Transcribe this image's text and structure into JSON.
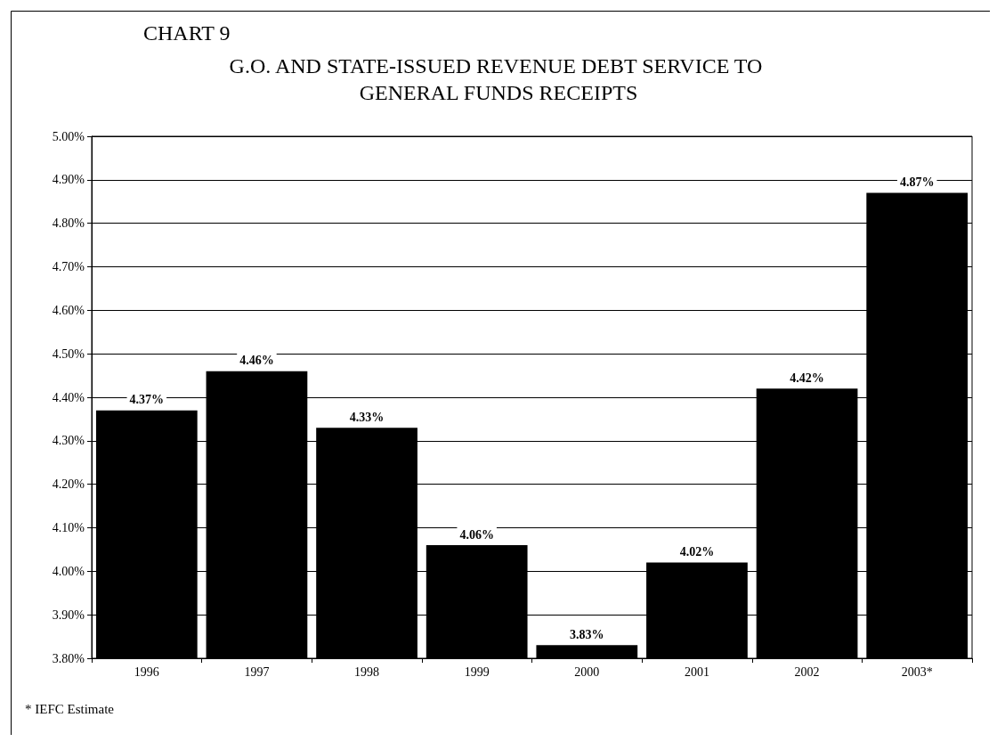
{
  "chart_data": {
    "type": "bar",
    "subtitle": "CHART 9",
    "title": "G.O. AND STATE-ISSUED REVENUE DEBT SERVICE TO GENERAL FUNDS RECEIPTS",
    "categories": [
      "1996",
      "1997",
      "1998",
      "1999",
      "2000",
      "2001",
      "2002",
      "2003*"
    ],
    "values": [
      4.37,
      4.46,
      4.33,
      4.06,
      3.83,
      4.02,
      4.42,
      4.87
    ],
    "value_labels": [
      "4.37%",
      "4.46%",
      "4.33%",
      "4.06%",
      "3.83%",
      "4.02%",
      "4.42%",
      "4.87%"
    ],
    "color": "#000000",
    "ylim": [
      3.8,
      5.0
    ],
    "yticks": [
      {
        "value": 3.8,
        "label": "3.80%"
      },
      {
        "value": 3.9,
        "label": "3.90%"
      },
      {
        "value": 4.0,
        "label": "4.00%"
      },
      {
        "value": 4.1,
        "label": "4.10%"
      },
      {
        "value": 4.2,
        "label": "4.20%"
      },
      {
        "value": 4.3,
        "label": "4.30%"
      },
      {
        "value": 4.4,
        "label": "4.40%"
      },
      {
        "value": 4.5,
        "label": "4.50%"
      },
      {
        "value": 4.6,
        "label": "4.60%"
      },
      {
        "value": 4.7,
        "label": "4.70%"
      },
      {
        "value": 4.8,
        "label": "4.80%"
      },
      {
        "value": 4.9,
        "label": "4.90%"
      },
      {
        "value": 5.0,
        "label": "5.00%"
      }
    ],
    "grid": "y",
    "annotations": [
      "* IEFC Estimate"
    ]
  }
}
